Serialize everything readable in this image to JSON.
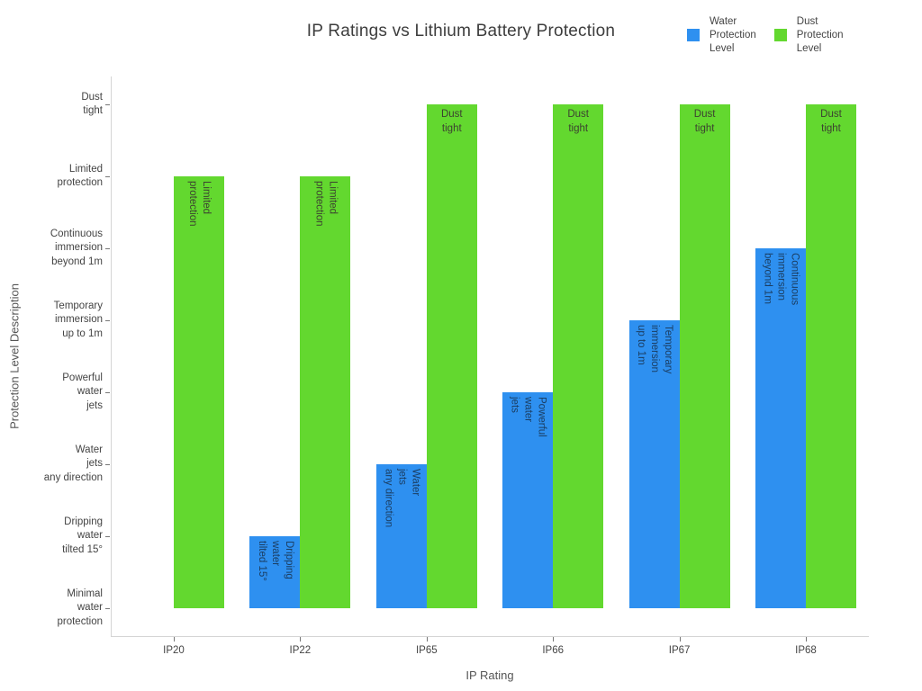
{
  "chart_data": {
    "type": "bar",
    "title": "IP Ratings vs Lithium Battery Protection",
    "xlabel": "IP Rating",
    "ylabel": "Protection Level Description",
    "categories": [
      "IP20",
      "IP22",
      "IP65",
      "IP66",
      "IP67",
      "IP68"
    ],
    "y_tick_values": [
      0,
      1,
      2,
      3,
      4,
      5,
      6,
      7
    ],
    "y_tick_labels": [
      "Minimal\nwater\nprotection",
      "Dripping\nwater\ntilted 15°",
      "Water\njets\nany direction",
      "Powerful\nwater\njets",
      "Temporary\nimmersion\nup to 1m",
      "Continuous\nimmersion\nbeyond 1m",
      "Limited\nprotection",
      "Dust\ntight"
    ],
    "ylim": [
      -0.4,
      7.4
    ],
    "grid": false,
    "legend_position": "top-right",
    "series": [
      {
        "name": "Water\nProtection\nLevel",
        "color": "#2E90F0",
        "label_color": "#1b3e63",
        "values": [
          0,
          1,
          2,
          3,
          4,
          5
        ],
        "bar_labels": [
          "",
          "Dripping\nwater\ntilted 15°",
          "Water\njets\nany direction",
          "Powerful\nwater\njets",
          "Temporary\nimmersion\nup to 1m",
          "Continuous\nimmersion\nbeyond 1m"
        ]
      },
      {
        "name": "Dust\nProtection\nLevel",
        "color": "#63D82F",
        "label_color": "#3c4230",
        "values": [
          6,
          6,
          7,
          7,
          7,
          7
        ],
        "bar_labels": [
          "Limited\nprotection",
          "Limited\nprotection",
          "Dust\ntight",
          "Dust\ntight",
          "Dust\ntight",
          "Dust\ntight"
        ]
      }
    ]
  }
}
